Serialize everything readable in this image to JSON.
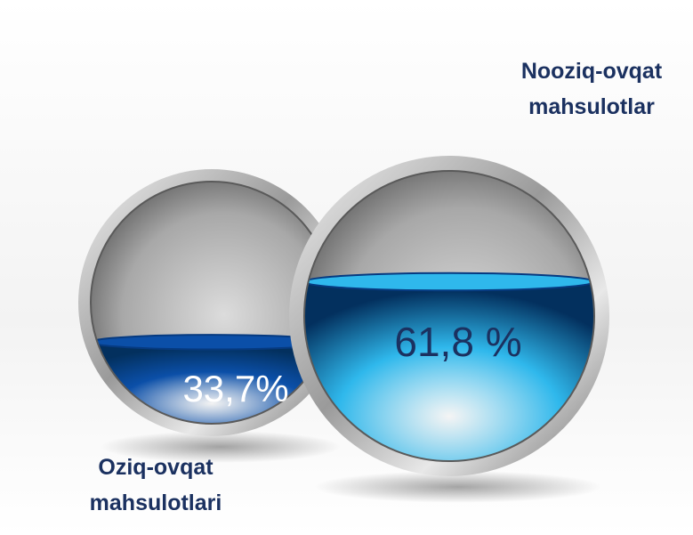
{
  "chart_data": {
    "type": "liquid-sphere",
    "categories": [
      "Oziq-ovqat mahsulotlari",
      "Nooziq-ovqat mahsulotlar"
    ],
    "values": [
      33.7,
      61.8
    ],
    "value_labels": [
      "33,7%",
      "61,8 %"
    ],
    "colors": [
      "#0b4fa8",
      "#2fb8ec"
    ],
    "ylim": [
      0,
      100
    ]
  }
}
